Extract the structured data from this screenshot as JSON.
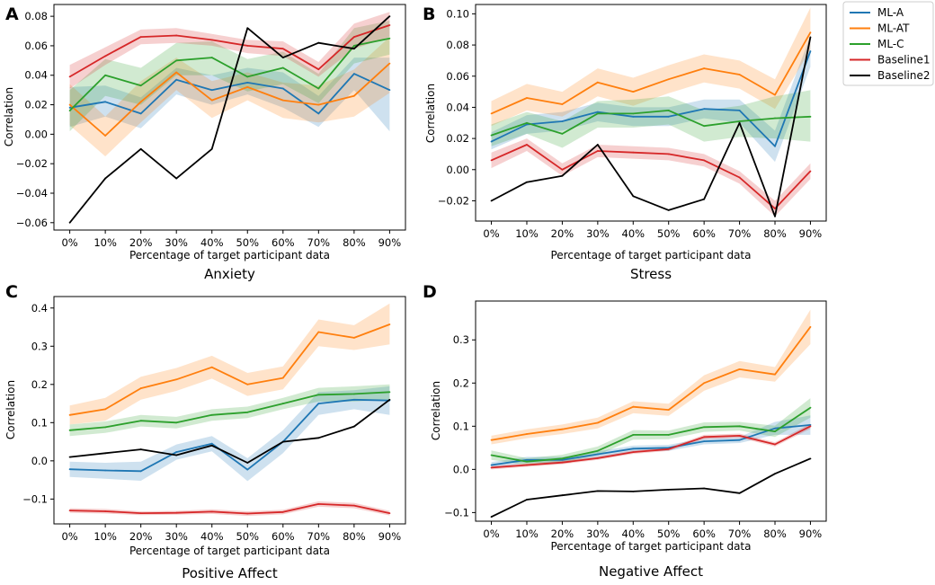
{
  "chart_data": [
    {
      "type": "line",
      "letter": "A",
      "title": "Anxiety",
      "xlabel": "Percentage of target participant data",
      "ylabel": "Correlation",
      "categories": [
        "0%",
        "10%",
        "20%",
        "30%",
        "40%",
        "50%",
        "60%",
        "70%",
        "80%",
        "90%"
      ],
      "ylim": [
        -0.065,
        0.088
      ],
      "yticks": [
        -0.06,
        -0.04,
        -0.02,
        0.0,
        0.02,
        0.04,
        0.06,
        0.08
      ],
      "ytick_labels": [
        "−0.06",
        "−0.04",
        "−0.02",
        "0.00",
        "0.02",
        "0.04",
        "0.06",
        "0.08"
      ],
      "series": [
        {
          "name": "ML-A",
          "values": [
            0.018,
            0.022,
            0.014,
            0.037,
            0.03,
            0.035,
            0.031,
            0.014,
            0.041,
            0.03
          ],
          "lower": [
            0.005,
            0.012,
            0.004,
            0.027,
            0.02,
            0.027,
            0.018,
            0.005,
            0.03,
            0.002
          ],
          "upper": [
            0.032,
            0.033,
            0.025,
            0.045,
            0.04,
            0.045,
            0.042,
            0.026,
            0.052,
            0.052
          ]
        },
        {
          "name": "ML-AT",
          "values": [
            0.02,
            -0.001,
            0.022,
            0.042,
            0.023,
            0.032,
            0.023,
            0.02,
            0.026,
            0.048
          ],
          "lower": [
            0.006,
            -0.015,
            0.008,
            0.03,
            0.011,
            0.023,
            0.011,
            0.008,
            0.012,
            0.028
          ],
          "upper": [
            0.034,
            0.012,
            0.036,
            0.052,
            0.036,
            0.042,
            0.035,
            0.033,
            0.044,
            0.066
          ]
        },
        {
          "name": "ML-C",
          "values": [
            0.016,
            0.04,
            0.033,
            0.05,
            0.052,
            0.039,
            0.045,
            0.031,
            0.06,
            0.065
          ],
          "lower": [
            0.002,
            0.026,
            0.02,
            0.04,
            0.04,
            0.029,
            0.034,
            0.021,
            0.048,
            0.054
          ],
          "upper": [
            0.03,
            0.051,
            0.045,
            0.062,
            0.063,
            0.051,
            0.056,
            0.041,
            0.072,
            0.077
          ]
        },
        {
          "name": "Baseline1",
          "values": [
            0.039,
            0.053,
            0.066,
            0.067,
            0.064,
            0.06,
            0.058,
            0.044,
            0.066,
            0.074
          ],
          "lower": [
            0.031,
            0.047,
            0.061,
            0.062,
            0.06,
            0.055,
            0.053,
            0.039,
            0.058,
            0.066
          ],
          "upper": [
            0.047,
            0.059,
            0.071,
            0.072,
            0.068,
            0.064,
            0.063,
            0.049,
            0.075,
            0.083
          ]
        },
        {
          "name": "Baseline2",
          "values": [
            -0.06,
            -0.03,
            -0.01,
            -0.03,
            -0.01,
            0.072,
            0.052,
            0.062,
            0.058,
            0.08
          ]
        }
      ]
    },
    {
      "type": "line",
      "letter": "B",
      "title": "Stress",
      "xlabel": "Percentage of target participant data",
      "ylabel": "Correlation",
      "categories": [
        "0%",
        "10%",
        "20%",
        "30%",
        "40%",
        "50%",
        "60%",
        "70%",
        "80%",
        "90%"
      ],
      "ylim": [
        -0.033,
        0.106
      ],
      "yticks": [
        -0.02,
        0.0,
        0.02,
        0.04,
        0.06,
        0.08,
        0.1
      ],
      "ytick_labels": [
        "−0.02",
        "0.00",
        "0.02",
        "0.04",
        "0.06",
        "0.08",
        "0.10"
      ],
      "series": [
        {
          "name": "ML-A",
          "values": [
            0.018,
            0.029,
            0.031,
            0.037,
            0.034,
            0.034,
            0.039,
            0.038,
            0.015,
            0.076
          ],
          "lower": [
            0.013,
            0.023,
            0.025,
            0.031,
            0.028,
            0.028,
            0.033,
            0.03,
            0.005,
            0.066
          ],
          "upper": [
            0.024,
            0.035,
            0.037,
            0.043,
            0.04,
            0.04,
            0.045,
            0.045,
            0.025,
            0.086
          ]
        },
        {
          "name": "ML-AT",
          "values": [
            0.036,
            0.046,
            0.042,
            0.056,
            0.05,
            0.058,
            0.065,
            0.061,
            0.048,
            0.088
          ],
          "lower": [
            0.028,
            0.038,
            0.034,
            0.047,
            0.041,
            0.049,
            0.056,
            0.052,
            0.039,
            0.077
          ],
          "upper": [
            0.044,
            0.055,
            0.05,
            0.065,
            0.059,
            0.067,
            0.074,
            0.07,
            0.058,
            0.104
          ]
        },
        {
          "name": "ML-C",
          "values": [
            0.022,
            0.03,
            0.023,
            0.036,
            0.036,
            0.038,
            0.028,
            0.031,
            0.033,
            0.034
          ],
          "lower": [
            0.015,
            0.023,
            0.014,
            0.027,
            0.027,
            0.029,
            0.018,
            0.021,
            0.02,
            0.018
          ],
          "upper": [
            0.029,
            0.037,
            0.031,
            0.044,
            0.045,
            0.047,
            0.038,
            0.041,
            0.047,
            0.051
          ]
        },
        {
          "name": "Baseline1",
          "values": [
            0.006,
            0.016,
            0.0,
            0.012,
            0.011,
            0.01,
            0.006,
            -0.005,
            -0.025,
            -0.001
          ],
          "lower": [
            0.001,
            0.012,
            -0.004,
            0.008,
            0.007,
            0.006,
            0.002,
            -0.009,
            -0.03,
            -0.006
          ],
          "upper": [
            0.011,
            0.02,
            0.004,
            0.016,
            0.015,
            0.014,
            0.01,
            -0.001,
            -0.02,
            0.004
          ]
        },
        {
          "name": "Baseline2",
          "values": [
            -0.02,
            -0.008,
            -0.004,
            0.016,
            -0.017,
            -0.026,
            -0.019,
            0.03,
            -0.03,
            0.085
          ]
        }
      ]
    },
    {
      "type": "line",
      "letter": "C",
      "title": "Positive Affect",
      "xlabel": "Percentage of target participant data",
      "ylabel": "Correlation",
      "categories": [
        "0%",
        "10%",
        "20%",
        "30%",
        "40%",
        "50%",
        "60%",
        "70%",
        "80%",
        "90%"
      ],
      "ylim": [
        -0.165,
        0.43
      ],
      "yticks": [
        -0.1,
        0.0,
        0.1,
        0.2,
        0.3,
        0.4
      ],
      "ytick_labels": [
        "−0.1",
        "0.0",
        "0.1",
        "0.2",
        "0.3",
        "0.4"
      ],
      "series": [
        {
          "name": "ML-A",
          "values": [
            -0.022,
            -0.025,
            -0.027,
            0.023,
            0.045,
            -0.023,
            0.05,
            0.15,
            0.16,
            0.158
          ],
          "lower": [
            -0.042,
            -0.047,
            -0.052,
            0.003,
            0.025,
            -0.053,
            0.02,
            0.12,
            0.135,
            0.12
          ],
          "upper": [
            -0.002,
            -0.005,
            -0.002,
            0.043,
            0.065,
            0.007,
            0.08,
            0.18,
            0.185,
            0.195
          ]
        },
        {
          "name": "ML-AT",
          "values": [
            0.12,
            0.135,
            0.19,
            0.213,
            0.245,
            0.2,
            0.217,
            0.337,
            0.322,
            0.357
          ],
          "lower": [
            0.095,
            0.105,
            0.16,
            0.183,
            0.215,
            0.17,
            0.187,
            0.3,
            0.29,
            0.305
          ],
          "upper": [
            0.145,
            0.165,
            0.22,
            0.243,
            0.275,
            0.23,
            0.247,
            0.37,
            0.355,
            0.412
          ]
        },
        {
          "name": "ML-C",
          "values": [
            0.08,
            0.088,
            0.105,
            0.1,
            0.12,
            0.127,
            0.15,
            0.173,
            0.175,
            0.18
          ],
          "lower": [
            0.065,
            0.073,
            0.09,
            0.085,
            0.105,
            0.112,
            0.135,
            0.155,
            0.155,
            0.16
          ],
          "upper": [
            0.095,
            0.103,
            0.12,
            0.115,
            0.135,
            0.142,
            0.165,
            0.191,
            0.195,
            0.2
          ]
        },
        {
          "name": "Baseline1",
          "values": [
            -0.13,
            -0.132,
            -0.137,
            -0.136,
            -0.133,
            -0.138,
            -0.134,
            -0.113,
            -0.117,
            -0.137
          ],
          "lower": [
            -0.136,
            -0.138,
            -0.142,
            -0.141,
            -0.139,
            -0.144,
            -0.14,
            -0.12,
            -0.124,
            -0.143
          ],
          "upper": [
            -0.124,
            -0.126,
            -0.132,
            -0.131,
            -0.127,
            -0.132,
            -0.128,
            -0.106,
            -0.11,
            -0.131
          ]
        },
        {
          "name": "Baseline2",
          "values": [
            0.01,
            0.02,
            0.03,
            0.015,
            0.04,
            -0.005,
            0.05,
            0.06,
            0.09,
            0.16
          ]
        }
      ]
    },
    {
      "type": "line",
      "letter": "D",
      "title": "Negative Affect",
      "xlabel": "Percentage of target participant data",
      "ylabel": "Correlation",
      "categories": [
        "0%",
        "10%",
        "20%",
        "30%",
        "40%",
        "50%",
        "60%",
        "70%",
        "80%",
        "90%"
      ],
      "ylim": [
        -0.12,
        0.39
      ],
      "yticks": [
        -0.1,
        0.0,
        0.1,
        0.2,
        0.3
      ],
      "ytick_labels": [
        "−0.1",
        "0.0",
        "0.1",
        "0.2",
        "0.3"
      ],
      "series": [
        {
          "name": "ML-A",
          "values": [
            0.01,
            0.022,
            0.022,
            0.035,
            0.048,
            0.05,
            0.065,
            0.068,
            0.095,
            0.103
          ],
          "lower": [
            0.003,
            0.015,
            0.015,
            0.028,
            0.041,
            0.043,
            0.058,
            0.061,
            0.08,
            0.08
          ],
          "upper": [
            0.017,
            0.029,
            0.029,
            0.042,
            0.055,
            0.057,
            0.072,
            0.075,
            0.11,
            0.125
          ]
        },
        {
          "name": "ML-AT",
          "values": [
            0.068,
            0.082,
            0.093,
            0.108,
            0.145,
            0.138,
            0.2,
            0.232,
            0.22,
            0.33
          ],
          "lower": [
            0.058,
            0.072,
            0.082,
            0.095,
            0.13,
            0.124,
            0.182,
            0.213,
            0.203,
            0.29
          ],
          "upper": [
            0.078,
            0.093,
            0.104,
            0.12,
            0.158,
            0.152,
            0.218,
            0.251,
            0.237,
            0.37
          ]
        },
        {
          "name": "ML-C",
          "values": [
            0.033,
            0.018,
            0.025,
            0.043,
            0.08,
            0.08,
            0.098,
            0.1,
            0.088,
            0.143
          ],
          "lower": [
            0.022,
            0.01,
            0.016,
            0.033,
            0.069,
            0.07,
            0.087,
            0.09,
            0.075,
            0.12
          ],
          "upper": [
            0.044,
            0.026,
            0.034,
            0.053,
            0.091,
            0.09,
            0.109,
            0.11,
            0.101,
            0.165
          ]
        },
        {
          "name": "Baseline1",
          "values": [
            0.004,
            0.01,
            0.016,
            0.026,
            0.04,
            0.047,
            0.075,
            0.078,
            0.058,
            0.1
          ],
          "lower": [
            0.0,
            0.006,
            0.012,
            0.022,
            0.036,
            0.043,
            0.07,
            0.073,
            0.053,
            0.094
          ],
          "upper": [
            0.008,
            0.014,
            0.02,
            0.03,
            0.044,
            0.051,
            0.08,
            0.083,
            0.063,
            0.106
          ]
        },
        {
          "name": "Baseline2",
          "values": [
            -0.11,
            -0.07,
            -0.06,
            -0.05,
            -0.051,
            -0.047,
            -0.044,
            -0.055,
            -0.01,
            0.025
          ]
        }
      ]
    }
  ],
  "legend": {
    "placement": "top-right",
    "items": [
      {
        "name": "ML-A",
        "color": "#1f77b4"
      },
      {
        "name": "ML-AT",
        "color": "#ff7f0e"
      },
      {
        "name": "ML-C",
        "color": "#2ca02c"
      },
      {
        "name": "Baseline1",
        "color": "#d62728"
      },
      {
        "name": "Baseline2",
        "color": "#000000"
      }
    ]
  },
  "colors": {
    "ML-A": "#1f77b4",
    "ML-AT": "#ff7f0e",
    "ML-C": "#2ca02c",
    "Baseline1": "#d62728",
    "Baseline2": "#000000"
  }
}
